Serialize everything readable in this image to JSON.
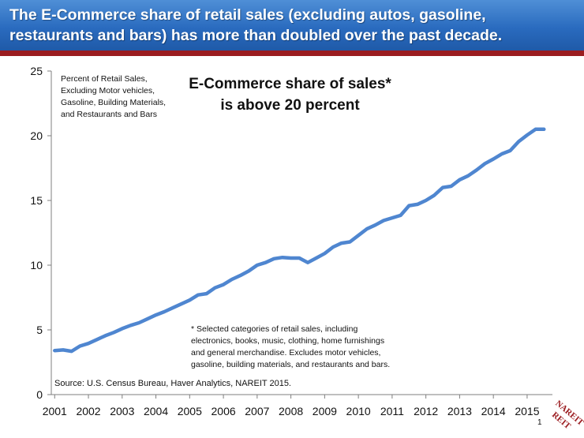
{
  "header": {
    "title_line1": "The E-Commerce share of retail sales (excluding autos, gasoline,",
    "title_line2": "restaurants and bars) has more than doubled over the past decade.",
    "bg_color": "#2a6bbf",
    "accent_color": "#9b1c20"
  },
  "chart_data": {
    "type": "line",
    "title_line1": "E-Commerce share of sales*",
    "title_line2": "is above 20 percent",
    "ylabel_lines": [
      "Percent of Retail Sales,",
      "Excluding Motor vehicles,",
      "Gasoline, Building Materials,",
      "and Restaurants and Bars"
    ],
    "footnote_lines": [
      "* Selected categories of retail sales, including",
      "electronics, books, music, clothing, home furnishings",
      "and general merchandise.  Excludes motor vehicles,",
      "gasoline, building materials, and restaurants and bars."
    ],
    "source": "Source: U.S. Census Bureau, Haver Analytics, NAREIT 2015.",
    "ylim": [
      0,
      25
    ],
    "yticks": [
      0,
      5,
      10,
      15,
      20,
      25
    ],
    "xlim": [
      2000.9,
      2015.75
    ],
    "xticks": [
      "2001",
      "2002",
      "2003",
      "2004",
      "2005",
      "2006",
      "2007",
      "2008",
      "2009",
      "2010",
      "2011",
      "2012",
      "2013",
      "2014",
      "2015"
    ],
    "grid": false,
    "line_color": "#4f86d0",
    "series": [
      {
        "x": [
          2001.0,
          2001.25,
          2001.5,
          2001.75,
          2002.0,
          2002.25,
          2002.5,
          2002.75,
          2003.0,
          2003.25,
          2003.5,
          2003.75,
          2004.0,
          2004.25,
          2004.5,
          2004.75,
          2005.0,
          2005.25,
          2005.5,
          2005.75,
          2006.0,
          2006.25,
          2006.5,
          2006.75,
          2007.0,
          2007.25,
          2007.5,
          2007.75,
          2008.0,
          2008.25,
          2008.5,
          2008.75,
          2009.0,
          2009.25,
          2009.5,
          2009.75,
          2010.0,
          2010.25,
          2010.5,
          2010.75,
          2011.0,
          2011.25,
          2011.5,
          2011.75,
          2012.0,
          2012.25,
          2012.5,
          2012.75,
          2013.0,
          2013.25,
          2013.5,
          2013.75,
          2014.0,
          2014.25,
          2014.5,
          2014.75,
          2015.0,
          2015.25,
          2015.5
        ],
        "values": [
          3.4,
          3.45,
          3.35,
          3.75,
          3.95,
          4.25,
          4.55,
          4.8,
          5.1,
          5.35,
          5.55,
          5.85,
          6.15,
          6.4,
          6.7,
          7.0,
          7.3,
          7.7,
          7.8,
          8.25,
          8.5,
          8.9,
          9.2,
          9.55,
          10.0,
          10.2,
          10.5,
          10.6,
          10.55,
          10.55,
          10.2,
          10.55,
          10.9,
          11.4,
          11.7,
          11.8,
          12.3,
          12.8,
          13.1,
          13.45,
          13.65,
          13.85,
          14.6,
          14.7,
          15.0,
          15.4,
          16.0,
          16.1,
          16.6,
          16.9,
          17.35,
          17.85,
          18.2,
          18.6,
          18.85,
          19.55,
          20.05,
          20.5,
          20.5
        ]
      }
    ]
  },
  "footer": {
    "page_number": "1",
    "logo_text_line1": "NAREIT",
    "logo_text_line2": "REIT"
  }
}
